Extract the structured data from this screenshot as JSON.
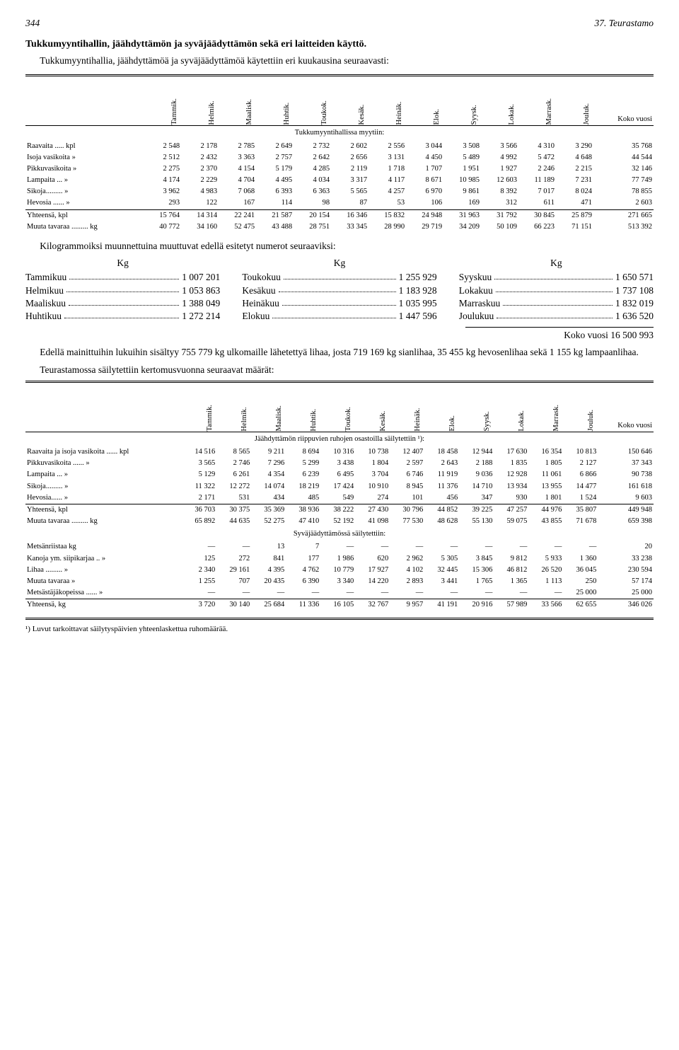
{
  "header": {
    "page_no": "344",
    "running": "37. Teurastamo"
  },
  "section_title": "Tukkumyyntihallin, jäähdyttämön ja syväjäädyttämön sekä eri laitteiden käyttö.",
  "intro": "Tukkumyyntihallia, jäähdyttämöä ja syväjäädyttämöä käytettiin eri kuukausina seuraavasti:",
  "months": [
    "Tammik.",
    "Helmik.",
    "Maalisk.",
    "Huhtik.",
    "Toukok.",
    "Kesäk.",
    "Heinäk.",
    "Elok.",
    "Syysk.",
    "Lokak.",
    "Marrask.",
    "Jouluk."
  ],
  "koko_vuosi": "Koko vuosi",
  "table1": {
    "section_label": "Tukkumyyntihallissa myytiin:",
    "rows": [
      {
        "label": "Raavaita ..... kpl",
        "v": [
          "2 548",
          "2 178",
          "2 785",
          "2 649",
          "2 732",
          "2 602",
          "2 556",
          "3 044",
          "3 508",
          "3 566",
          "4 310",
          "3 290",
          "35 768"
        ]
      },
      {
        "label": "Isoja vasikoita »",
        "v": [
          "2 512",
          "2 432",
          "3 363",
          "2 757",
          "2 642",
          "2 656",
          "3 131",
          "4 450",
          "5 489",
          "4 992",
          "5 472",
          "4 648",
          "44 544"
        ]
      },
      {
        "label": "Pikkuvasikoita »",
        "v": [
          "2 275",
          "2 370",
          "4 154",
          "5 179",
          "4 285",
          "2 119",
          "1 718",
          "1 707",
          "1 951",
          "1 927",
          "2 246",
          "2 215",
          "32 146"
        ]
      },
      {
        "label": "Lampaita ...  »",
        "v": [
          "4 174",
          "2 229",
          "4 704",
          "4 495",
          "4 034",
          "3 317",
          "4 117",
          "8 671",
          "10 985",
          "12 603",
          "11 189",
          "7 231",
          "77 749"
        ]
      },
      {
        "label": "Sikoja.........  »",
        "v": [
          "3 962",
          "4 983",
          "7 068",
          "6 393",
          "6 363",
          "5 565",
          "4 257",
          "6 970",
          "9 861",
          "8 392",
          "7 017",
          "8 024",
          "78 855"
        ]
      },
      {
        "label": "Hevosia ......  »",
        "v": [
          "293",
          "122",
          "167",
          "114",
          "98",
          "87",
          "53",
          "106",
          "169",
          "312",
          "611",
          "471",
          "2 603"
        ]
      }
    ],
    "totals": [
      {
        "label": "Yhteensä, kpl",
        "v": [
          "15 764",
          "14 314",
          "22 241",
          "21 587",
          "20 154",
          "16 346",
          "15 832",
          "24 948",
          "31 963",
          "31 792",
          "30 845",
          "25 879",
          "271 665"
        ]
      },
      {
        "label": "Muuta tavaraa ......... kg",
        "v": [
          "40 772",
          "34 160",
          "52 475",
          "43 488",
          "28 751",
          "33 345",
          "28 990",
          "29 719",
          "34 209",
          "50 109",
          "66 223",
          "71 151",
          "513 392"
        ]
      }
    ]
  },
  "kg_intro": "Kilogrammoiksi muunnettuina muuttuvat edellä esitetyt numerot seuraaviksi:",
  "kg_head": "Kg",
  "kg_blocks": [
    [
      {
        "m": "Tammikuu",
        "v": "1 007 201"
      },
      {
        "m": "Helmikuu",
        "v": "1 053 863"
      },
      {
        "m": "Maaliskuu",
        "v": "1 388 049"
      },
      {
        "m": "Huhtikuu",
        "v": "1 272 214"
      }
    ],
    [
      {
        "m": "Toukokuu",
        "v": "1 255 929"
      },
      {
        "m": "Kesäkuu",
        "v": "1 183 928"
      },
      {
        "m": "Heinäkuu",
        "v": "1 035 995"
      },
      {
        "m": "Elokuu",
        "v": "1 447 596"
      }
    ],
    [
      {
        "m": "Syyskuu",
        "v": "1 650 571"
      },
      {
        "m": "Lokakuu",
        "v": "1 737 108"
      },
      {
        "m": "Marraskuu",
        "v": "1 832 019"
      },
      {
        "m": "Joulukuu",
        "v": "1 636 520"
      }
    ]
  ],
  "kg_total": "Koko vuosi 16 500 993",
  "paragraph2": "Edellä mainittuihin lukuihin sisältyy 755 779 kg ulkomaille lähetettyä lihaa, josta 719 169 kg sianlihaa, 35 455 kg hevosenlihaa sekä 1 155 kg lampaanlihaa.",
  "paragraph3": "Teurastamossa säilytettiin kertomusvuonna seuraavat määrät:",
  "table2": {
    "section1_label": "Jäähdyttämön riippuvien ruhojen osastoilla säilytettiin ¹):",
    "rows1": [
      {
        "label": "Raavaita ja isoja vasikoita ...... kpl",
        "v": [
          "14 516",
          "8 565",
          "9 211",
          "8 694",
          "10 316",
          "10 738",
          "12 407",
          "18 458",
          "12 944",
          "17 630",
          "16 354",
          "10 813",
          "150 646"
        ]
      },
      {
        "label": "Pikkuvasikoita ......  »",
        "v": [
          "3 565",
          "2 746",
          "7 296",
          "5 299",
          "3 438",
          "1 804",
          "2 597",
          "2 643",
          "2 188",
          "1 835",
          "1 805",
          "2 127",
          "37 343"
        ]
      },
      {
        "label": "Lampaita ...  »",
        "v": [
          "5 129",
          "6 261",
          "4 354",
          "6 239",
          "6 495",
          "3 704",
          "6 746",
          "11 919",
          "9 036",
          "12 928",
          "11 061",
          "6 866",
          "90 738"
        ]
      },
      {
        "label": "Sikoja.........  »",
        "v": [
          "11 322",
          "12 272",
          "14 074",
          "18 219",
          "17 424",
          "10 910",
          "8 945",
          "11 376",
          "14 710",
          "13 934",
          "13 955",
          "14 477",
          "161 618"
        ]
      },
      {
        "label": "Hevosia......  »",
        "v": [
          "2 171",
          "531",
          "434",
          "485",
          "549",
          "274",
          "101",
          "456",
          "347",
          "930",
          "1 801",
          "1 524",
          "9 603"
        ]
      }
    ],
    "totals1": [
      {
        "label": "Yhteensä, kpl",
        "v": [
          "36 703",
          "30 375",
          "35 369",
          "38 936",
          "38 222",
          "27 430",
          "30 796",
          "44 852",
          "39 225",
          "47 257",
          "44 976",
          "35 807",
          "449 948"
        ]
      },
      {
        "label": "Muuta tavaraa ......... kg",
        "v": [
          "65 892",
          "44 635",
          "52 275",
          "47 410",
          "52 192",
          "41 098",
          "77 530",
          "48 628",
          "55 130",
          "59 075",
          "43 855",
          "71 678",
          "659 398"
        ]
      }
    ],
    "section2_label": "Syväjäädyttämössä säilytettiin:",
    "rows2": [
      {
        "label": "Metsänriistaa kg",
        "v": [
          "—",
          "—",
          "13",
          "7",
          "—",
          "—",
          "—",
          "—",
          "—",
          "—",
          "—",
          "—",
          "20"
        ]
      },
      {
        "label": "Kanoja ym. siipikarjaa .. »",
        "v": [
          "125",
          "272",
          "841",
          "177",
          "1 986",
          "620",
          "2 962",
          "5 305",
          "3 845",
          "9 812",
          "5 933",
          "1 360",
          "33 238"
        ]
      },
      {
        "label": "Lihaa .........  »",
        "v": [
          "2 340",
          "29 161",
          "4 395",
          "4 762",
          "10 779",
          "17 927",
          "4 102",
          "32 445",
          "15 306",
          "46 812",
          "26 520",
          "36 045",
          "230 594"
        ]
      },
      {
        "label": "Muuta tavaraa »",
        "v": [
          "1 255",
          "707",
          "20 435",
          "6 390",
          "3 340",
          "14 220",
          "2 893",
          "3 441",
          "1 765",
          "1 365",
          "1 113",
          "250",
          "57 174"
        ]
      },
      {
        "label": "Metsästäjäkopeissa ......  »",
        "v": [
          "—",
          "—",
          "—",
          "—",
          "—",
          "—",
          "—",
          "—",
          "—",
          "—",
          "—",
          "25 000",
          "25 000"
        ]
      }
    ],
    "totals2": [
      {
        "label": "Yhteensä, kg",
        "v": [
          "3 720",
          "30 140",
          "25 684",
          "11 336",
          "16 105",
          "32 767",
          "9 957",
          "41 191",
          "20 916",
          "57 989",
          "33 566",
          "62 655",
          "346 026"
        ]
      }
    ]
  },
  "footnote": "¹) Luvut tarkoittavat säilytyspäivien yhteenlaskettua ruhomäärää."
}
